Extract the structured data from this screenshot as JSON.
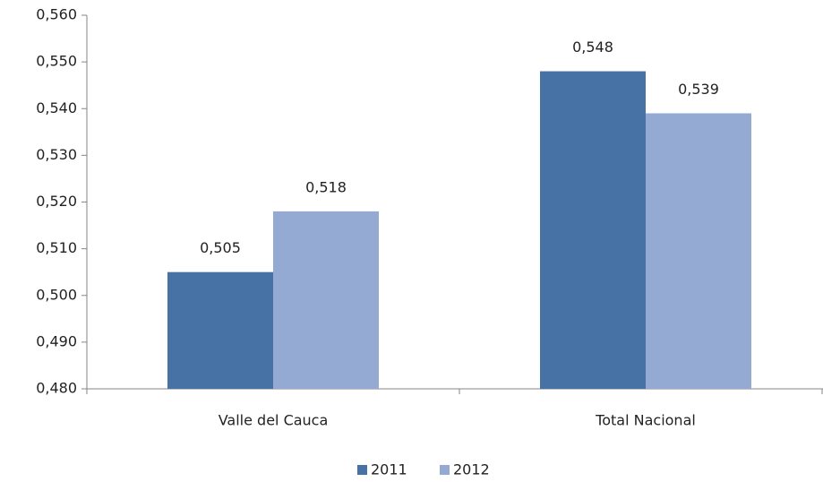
{
  "chart_data": {
    "type": "bar",
    "categories": [
      "Valle del Cauca",
      "Total Nacional"
    ],
    "series": [
      {
        "name": "2011",
        "color": "#4672a6",
        "values": [
          0.505,
          0.548
        ],
        "value_labels": [
          "0,505",
          "0,548"
        ]
      },
      {
        "name": "2012",
        "color": "#94aad3",
        "values": [
          0.518,
          0.539
        ],
        "value_labels": [
          "0,518",
          "0,539"
        ]
      }
    ],
    "ylim": [
      0.48,
      0.56
    ],
    "yticks": [
      {
        "value": 0.48,
        "label": "0,480"
      },
      {
        "value": 0.49,
        "label": "0,490"
      },
      {
        "value": 0.5,
        "label": "0,500"
      },
      {
        "value": 0.51,
        "label": "0,510"
      },
      {
        "value": 0.52,
        "label": "0,520"
      },
      {
        "value": 0.53,
        "label": "0,530"
      },
      {
        "value": 0.54,
        "label": "0,540"
      },
      {
        "value": 0.55,
        "label": "0,550"
      },
      {
        "value": 0.56,
        "label": "0,560"
      }
    ],
    "grid": false,
    "legend": "bottom"
  }
}
